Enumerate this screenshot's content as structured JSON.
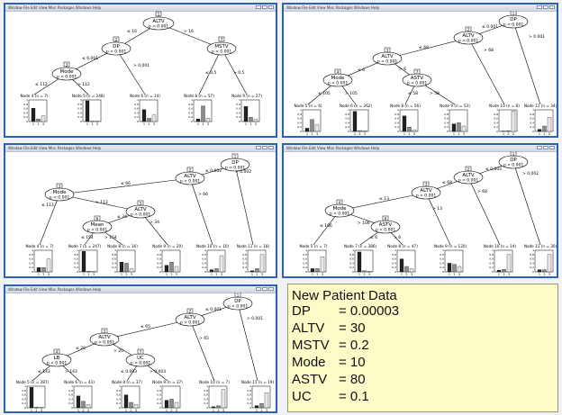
{
  "windows": [
    {
      "menu": "Window  File  Edit  View  Misc  Packages  Windows  Help",
      "nodes": [
        {
          "num": "1",
          "var": "ALTV",
          "p": "p < 0.001"
        },
        {
          "num": "2",
          "var": "DP",
          "p": "p < 0.001"
        },
        {
          "num": "3",
          "var": "Mode",
          "p": "p < 0.001"
        },
        {
          "num": "7",
          "var": "MSTV",
          "p": "p < 0.001"
        }
      ],
      "edges": [
        "≤ 16",
        "> 16",
        "≤ 0.001",
        "> 0.001",
        "≤ 112",
        "> 112",
        "≤ 0.5",
        "> 0.5"
      ],
      "leaves": [
        "Node 4 (n = 7)",
        "Node 5 (n = 248)",
        "Node 6 (n = 14)",
        "Node 8 (n = 57)",
        "Node 9 (n = 27)"
      ]
    },
    {
      "menu": "Window  File  Edit  View  Misc  Packages  Windows  Help",
      "nodes": [
        {
          "num": "1",
          "var": "DP",
          "p": "p < 0.001"
        },
        {
          "num": "2",
          "var": "ALTV",
          "p": "p < 0.001"
        },
        {
          "num": "3",
          "var": "ALTV",
          "p": "p < 0.001"
        },
        {
          "num": "4",
          "var": "Mode",
          "p": "p < 0.001"
        },
        {
          "num": "7",
          "var": "ASTV",
          "p": "p < 0.001"
        }
      ],
      "edges": [
        "≤ 0.001",
        "> 0.001",
        "≤ 68",
        "> 68",
        "≤ 6",
        "> 6",
        "≤ 105",
        "> 105",
        "≤ 58",
        "> 58"
      ],
      "leaves": [
        "Node 5 (n = 6)",
        "Node 6 (n = 262)",
        "Node 8 (n = 56)",
        "Node 9 (n = 53)",
        "Node 10 (n = 8)",
        "Node 11 (n = 34)"
      ]
    },
    {
      "menu": "Window  File  Edit  View  Misc  Packages  Windows  Help",
      "nodes": [
        {
          "num": "1",
          "var": "DP",
          "p": "p < 0.001"
        },
        {
          "num": "2",
          "var": "ALTV",
          "p": "p < 0.001"
        },
        {
          "num": "3",
          "var": "Mode",
          "p": "p < 0.001"
        },
        {
          "num": "5",
          "var": "ALTV",
          "p": "p < 0.001"
        },
        {
          "num": "6",
          "var": "Mean",
          "p": "p < 0.001"
        }
      ],
      "edges": [
        "≤ 0.002",
        "> 0.002",
        "≤ 66",
        "> 66",
        "≤ 113",
        "> 113",
        "≤ 34",
        "> 34",
        "≤ 154",
        "> 154"
      ],
      "leaves": [
        "Node 4 (n = 7)",
        "Node 7 (n = 247)",
        "Node 8 (n = 16)",
        "Node 9 (n = 20)",
        "Node 10 (n = 10)",
        "Node 11 (n = 18)"
      ]
    },
    {
      "menu": "Window  File  Edit  View  Misc  Packages  Windows  Help",
      "nodes": [
        {
          "num": "1",
          "var": "DP",
          "p": "p < 0.001"
        },
        {
          "num": "2",
          "var": "ALTV",
          "p": "p < 0.001"
        },
        {
          "num": "3",
          "var": "ALTV",
          "p": "p < 0.001"
        },
        {
          "num": "4",
          "var": "Mode",
          "p": "p < 0.001"
        },
        {
          "num": "6",
          "var": "ASTV",
          "p": "p < 0.001"
        }
      ],
      "edges": [
        "≤ 0.002",
        "> 0.002",
        "≤ 68",
        "> 68",
        "≤ 13",
        "> 13",
        "≤ 106",
        "> 106",
        "≤ 6",
        "> 6"
      ],
      "leaves": [
        "Node 5 (n = 7)",
        "Node 7 (n = 386)",
        "Node 8 (n = 47)",
        "Node 9 (n = 120)",
        "Node 10 (n = 14)",
        "Node 11 (n = 30)"
      ]
    },
    {
      "menu": "Window  File  Edit  View  Misc  Packages  Windows  Help",
      "nodes": [
        {
          "num": "1",
          "var": "DP",
          "p": "p < 0.001"
        },
        {
          "num": "2",
          "var": "ALTV",
          "p": "p < 0.001"
        },
        {
          "num": "3",
          "var": "ALTV",
          "p": "p < 0.001"
        },
        {
          "num": "4",
          "var": "LB",
          "p": "p < 0.001"
        },
        {
          "num": "7",
          "var": "UC",
          "p": "p < 0.001"
        }
      ],
      "edges": [
        "≤ 0.001",
        "> 0.001",
        "≤ 65",
        "> 65",
        "≤ 20",
        "> 20",
        "≤ 143",
        "> 143",
        "≤ 0.003",
        "> 0.003"
      ],
      "leaves": [
        "Node 5 (n = 287)",
        "Node 6 (n = 43)",
        "Node 8 (n = 37)",
        "Node 9 (n = 37)",
        "Node 10 (n = 7)",
        "Node 11 (n = 19)"
      ]
    }
  ],
  "axis": {
    "y_ticks": [
      "1",
      "0.8",
      "0.6",
      "0.4",
      "0.2",
      "0"
    ],
    "x_ticks": [
      "1",
      "2",
      "3"
    ]
  },
  "leaf_bars": [
    [
      [
        0.62,
        0.12,
        0.26
      ],
      [
        0.96,
        0.02,
        0.02
      ],
      [
        0.55,
        0.15,
        0.3
      ],
      [
        0.12,
        0.72,
        0.16
      ],
      [
        0.7,
        0.2,
        0.1
      ]
    ],
    [
      [
        0.15,
        0.55,
        0.3
      ],
      [
        0.93,
        0.04,
        0.03
      ],
      [
        0.72,
        0.2,
        0.08
      ],
      [
        0.35,
        0.4,
        0.25
      ],
      [
        0.02,
        0.03,
        0.95
      ],
      [
        0.1,
        0.25,
        0.65
      ]
    ],
    [
      [
        0.2,
        0.2,
        0.6
      ],
      [
        0.95,
        0.03,
        0.02
      ],
      [
        0.45,
        0.4,
        0.15
      ],
      [
        0.3,
        0.45,
        0.25
      ],
      [
        0.1,
        0.15,
        0.75
      ],
      [
        0.05,
        0.15,
        0.8
      ]
    ],
    [
      [
        0.15,
        0.15,
        0.7
      ],
      [
        0.92,
        0.05,
        0.03
      ],
      [
        0.6,
        0.25,
        0.15
      ],
      [
        0.4,
        0.35,
        0.25
      ],
      [
        0.08,
        0.12,
        0.8
      ],
      [
        0.1,
        0.1,
        0.8
      ]
    ],
    [
      [
        0.95,
        0.03,
        0.02
      ],
      [
        0.55,
        0.3,
        0.15
      ],
      [
        0.6,
        0.25,
        0.15
      ],
      [
        0.35,
        0.4,
        0.25
      ],
      [
        0.05,
        0.1,
        0.85
      ],
      [
        0.1,
        0.2,
        0.7
      ]
    ]
  ],
  "colors": {
    "window_border": "#2b62b5",
    "note_bg": "#fdfcc8",
    "bar1": "#222222",
    "bar2": "#8c8c8c",
    "bar3": "#e8e8e8"
  },
  "patient": {
    "title": "New Patient Data",
    "lines": [
      {
        "label": "DP",
        "value": "= 0.00003"
      },
      {
        "label": "ALTV",
        "value": "= 30"
      },
      {
        "label": "MSTV",
        "value": "= 0.2"
      },
      {
        "label": "Mode",
        "value": "= 10"
      },
      {
        "label": "ASTV",
        "value": "= 80"
      },
      {
        "label": "UC",
        "value": "= 0.1"
      }
    ]
  }
}
